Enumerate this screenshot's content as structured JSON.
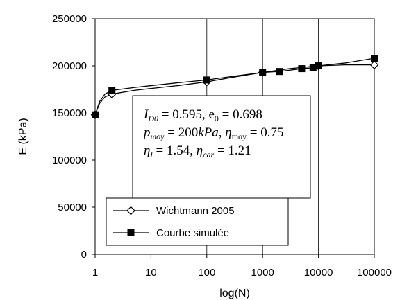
{
  "chart_data": {
    "type": "line",
    "xlabel": "log(N)",
    "ylabel": "E (kPa)",
    "xscale": "log",
    "xlim": [
      1,
      100000
    ],
    "ylim": [
      0,
      250000
    ],
    "x_ticks": [
      "1",
      "10",
      "100",
      "1000",
      "10000",
      "100000"
    ],
    "y_ticks": [
      "0",
      "50000",
      "100000",
      "150000",
      "200000",
      "250000"
    ],
    "grid": "vertical",
    "legend_position": "bottom-left",
    "series": [
      {
        "name": "Wichtmann 2005",
        "marker": "open-diamond",
        "color": "#000000",
        "points": [
          [
            1,
            148000
          ],
          [
            2,
            170000
          ],
          [
            100,
            183000
          ],
          [
            1000,
            193000
          ],
          [
            10000,
            200000
          ],
          [
            100000,
            201000
          ]
        ],
        "curve": [
          [
            1,
            148000
          ],
          [
            1.2,
            160000
          ],
          [
            1.5,
            167000
          ],
          [
            2,
            170000
          ],
          [
            5,
            174000
          ],
          [
            10,
            176000
          ],
          [
            30,
            179000
          ],
          [
            100,
            183000
          ],
          [
            300,
            188000
          ],
          [
            1000,
            193000
          ],
          [
            3000,
            197000
          ],
          [
            10000,
            200000
          ],
          [
            30000,
            201000
          ],
          [
            100000,
            201000
          ]
        ]
      },
      {
        "name": "Courbe simulée",
        "marker": "filled-square",
        "color": "#000000",
        "points": [
          [
            1,
            148000
          ],
          [
            2,
            174000
          ],
          [
            100,
            185000
          ],
          [
            1000,
            193000
          ],
          [
            2000,
            194000
          ],
          [
            5000,
            197000
          ],
          [
            8000,
            198000
          ],
          [
            10000,
            200000
          ],
          [
            100000,
            208000
          ]
        ],
        "curve": [
          [
            1,
            148000
          ],
          [
            1.2,
            162000
          ],
          [
            1.5,
            170000
          ],
          [
            2,
            174000
          ],
          [
            5,
            177000
          ],
          [
            10,
            179000
          ],
          [
            30,
            182000
          ],
          [
            100,
            185000
          ],
          [
            300,
            189000
          ],
          [
            1000,
            193000
          ],
          [
            2000,
            194000
          ],
          [
            5000,
            197000
          ],
          [
            8000,
            198000
          ],
          [
            10000,
            200000
          ],
          [
            30000,
            203000
          ],
          [
            100000,
            208000
          ]
        ]
      }
    ],
    "annotation": {
      "line1": "I_D0 = 0.595,  e_0 = 0.698",
      "line2": "p_moy = 200kPa,  η_moy = 0.75",
      "line3": "η_l = 1.54,  η_car = 1.21"
    }
  }
}
